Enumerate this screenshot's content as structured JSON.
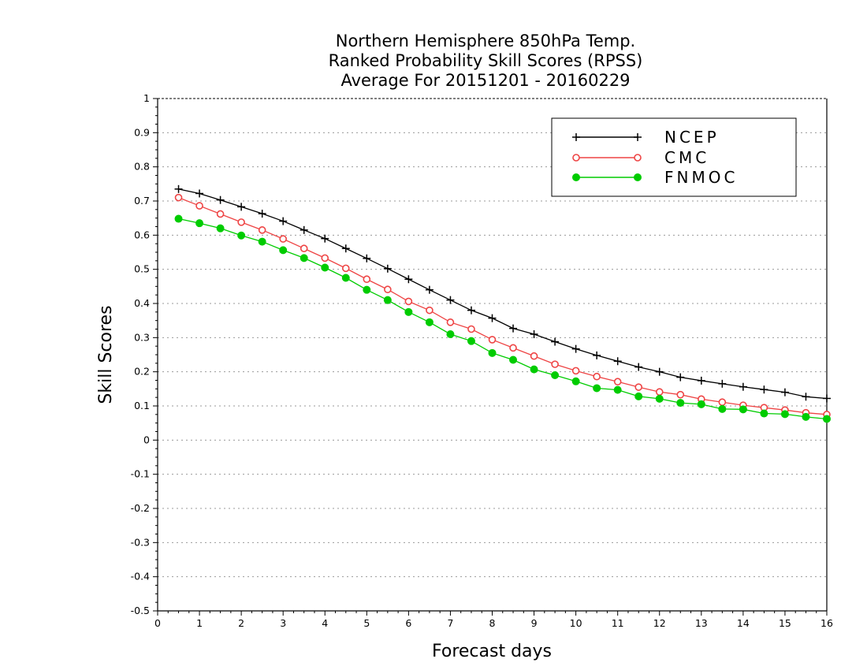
{
  "chart_data": {
    "type": "line",
    "title": [
      "Northern Hemisphere 850hPa Temp.",
      "Ranked Probability Skill Scores (RPSS)",
      "Average For 20151201 - 20160229"
    ],
    "xlabel": "Forecast days",
    "ylabel": "Skill Scores",
    "xlim": [
      0,
      16
    ],
    "ylim": [
      -0.5,
      1
    ],
    "xticks": [
      "0",
      "1",
      "2",
      "3",
      "4",
      "5",
      "6",
      "7",
      "8",
      "9",
      "10",
      "11",
      "12",
      "13",
      "14",
      "15",
      "16"
    ],
    "yticks": [
      "1",
      "0.9",
      "0.8",
      "0.7",
      "0.6",
      "0.5",
      "0.4",
      "0.3",
      "0.2",
      "0.1",
      "0",
      "-0.1",
      "-0.2",
      "-0.3",
      "-0.4",
      "-0.5"
    ],
    "ytick_values": [
      1,
      0.9,
      0.8,
      0.7,
      0.6,
      0.5,
      0.4,
      0.3,
      0.2,
      0.1,
      0,
      -0.1,
      -0.2,
      -0.3,
      -0.4,
      -0.5
    ],
    "grid": "horizontal-dotted",
    "legend_position": "top-right",
    "x": [
      0.5,
      1,
      1.5,
      2,
      2.5,
      3,
      3.5,
      4,
      4.5,
      5,
      5.5,
      6,
      6.5,
      7,
      7.5,
      8,
      8.5,
      9,
      9.5,
      10,
      10.5,
      11,
      11.5,
      12,
      12.5,
      13,
      13.5,
      14,
      14.5,
      15,
      15.5,
      16
    ],
    "series": [
      {
        "name": "NCEP",
        "color": "#000000",
        "marker": "plus",
        "values": [
          0.735,
          0.722,
          0.703,
          0.683,
          0.663,
          0.641,
          0.615,
          0.59,
          0.561,
          0.532,
          0.502,
          0.471,
          0.44,
          0.41,
          0.38,
          0.357,
          0.327,
          0.31,
          0.288,
          0.267,
          0.248,
          0.231,
          0.214,
          0.2,
          0.184,
          0.174,
          0.165,
          0.156,
          0.148,
          0.14,
          0.127,
          0.122
        ]
      },
      {
        "name": "CMC",
        "color": "#ee4444",
        "marker": "open-circle",
        "values": [
          0.71,
          0.686,
          0.662,
          0.638,
          0.615,
          0.589,
          0.561,
          0.533,
          0.503,
          0.471,
          0.441,
          0.406,
          0.38,
          0.345,
          0.325,
          0.294,
          0.27,
          0.246,
          0.222,
          0.203,
          0.186,
          0.171,
          0.155,
          0.141,
          0.133,
          0.12,
          0.111,
          0.102,
          0.095,
          0.088,
          0.08,
          0.075
        ]
      },
      {
        "name": "FNMOC",
        "color": "#00cc00",
        "marker": "filled-circle",
        "values": [
          0.648,
          0.635,
          0.62,
          0.599,
          0.581,
          0.556,
          0.533,
          0.505,
          0.475,
          0.44,
          0.41,
          0.375,
          0.345,
          0.31,
          0.29,
          0.255,
          0.235,
          0.207,
          0.19,
          0.172,
          0.152,
          0.147,
          0.128,
          0.121,
          0.109,
          0.105,
          0.091,
          0.09,
          0.078,
          0.076,
          0.068,
          0.062
        ]
      }
    ]
  }
}
